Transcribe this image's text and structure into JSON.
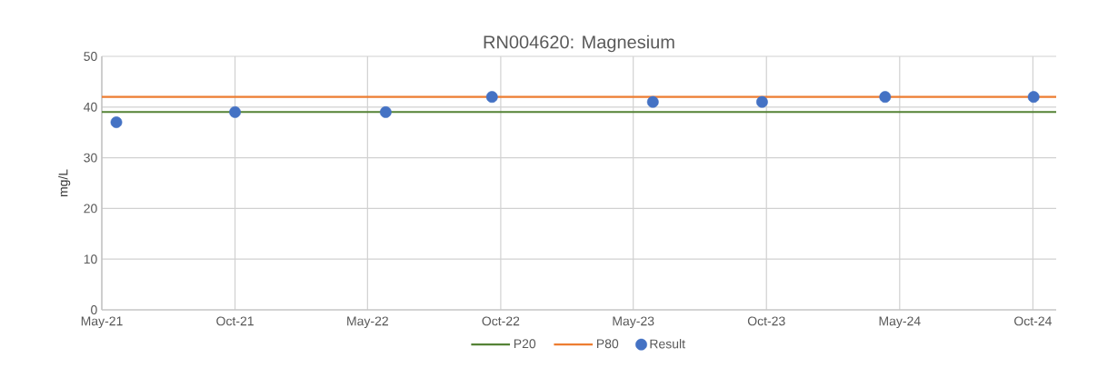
{
  "chart_data": {
    "type": "scatter",
    "title": "RN004620: Magnesium",
    "ylabel": "mg/L",
    "xlim": [
      "2021-05-01",
      "2024-12-02"
    ],
    "xticks": [
      {
        "value": "2021-05-01",
        "label": "May-21"
      },
      {
        "value": "2021-10-31",
        "label": "Oct-21"
      },
      {
        "value": "2022-05-01",
        "label": "May-22"
      },
      {
        "value": "2022-10-31",
        "label": "Oct-22"
      },
      {
        "value": "2023-05-01",
        "label": "May-23"
      },
      {
        "value": "2023-10-31",
        "label": "Oct-23"
      },
      {
        "value": "2024-05-01",
        "label": "May-24"
      },
      {
        "value": "2024-10-31",
        "label": "Oct-24"
      }
    ],
    "ylim": [
      0,
      50
    ],
    "yticks": [
      0,
      10,
      20,
      30,
      40,
      50
    ],
    "grid": true,
    "legend": "bottom",
    "series": [
      {
        "name": "P20",
        "type": "line",
        "color": "#548235",
        "x": [
          "2021-05-01",
          "2024-12-02"
        ],
        "values": [
          39,
          39
        ]
      },
      {
        "name": "P80",
        "type": "line",
        "color": "#ed7d31",
        "x": [
          "2021-05-01",
          "2024-12-02"
        ],
        "values": [
          42,
          42
        ]
      },
      {
        "name": "Result",
        "type": "scatter",
        "marker": "circle",
        "color": "#4472c4",
        "x": [
          "2021-05-21",
          "2021-10-31",
          "2022-05-26",
          "2022-10-19",
          "2023-05-28",
          "2023-10-25",
          "2024-04-11",
          "2024-11-01"
        ],
        "values": [
          37,
          39,
          39,
          42,
          41,
          41,
          42,
          42
        ]
      }
    ]
  }
}
